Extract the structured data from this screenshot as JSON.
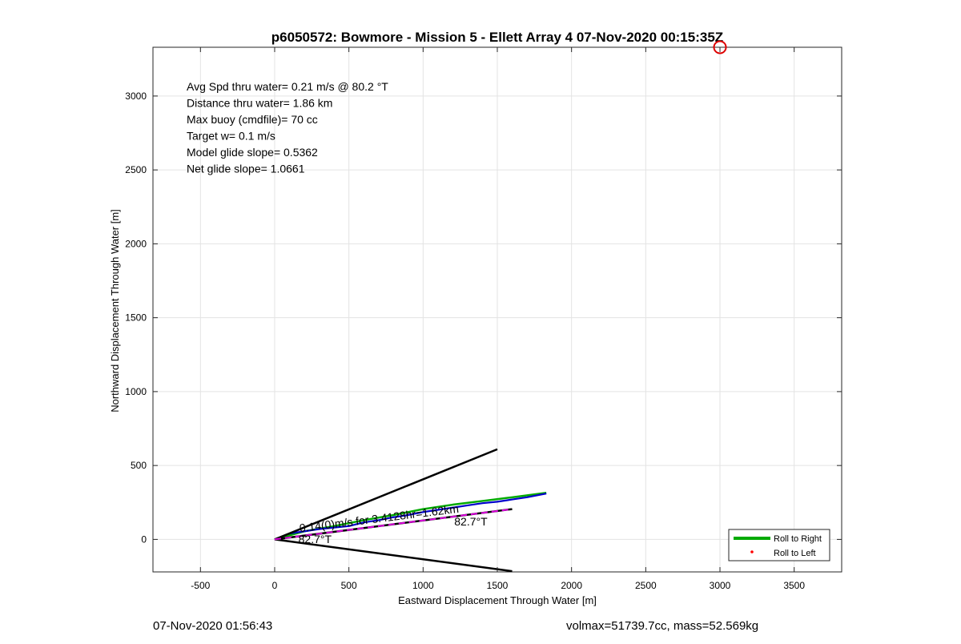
{
  "chart_data": {
    "type": "line",
    "title": "p6050572: Bowmore - Mission 5 - Ellett Array 4 07-Nov-2020 00:15:35Z",
    "xlabel": "Eastward Displacement Through Water [m]",
    "ylabel": "Northward Displacement Through Water [m]",
    "xlim": [
      -820,
      3820
    ],
    "ylim": [
      -220,
      3330
    ],
    "xticks": [
      -500,
      0,
      500,
      1000,
      1500,
      2000,
      2500,
      3000,
      3500
    ],
    "yticks": [
      0,
      500,
      1000,
      1500,
      2000,
      2500,
      3000
    ],
    "grid": true,
    "stats": [
      "Avg Spd thru water=  0.21 m/s @  80.2 °T",
      "Distance thru water=  1.86 km",
      "Max buoy (cmdfile)= 70 cc",
      "Target w= 0.1 m/s",
      "Model glide slope= 0.5362",
      "Net glide slope= 1.0661"
    ],
    "annotations": [
      {
        "text": "0.14(0)m/s for 3.4128hr=1.62km",
        "x": 170,
        "y": 50,
        "angle_deg": 7
      },
      {
        "text": "82.7°T",
        "x": 1210,
        "y": 95
      },
      {
        "text": "82.7°T",
        "x": 160,
        "y": -25
      }
    ],
    "series": [
      {
        "name": "Roll to Right",
        "color": "#00aa00",
        "x": [
          0,
          200,
          400,
          600,
          800,
          1000,
          1200,
          1400,
          1600,
          1830
        ],
        "y": [
          0,
          55,
          90,
          130,
          165,
          205,
          235,
          260,
          285,
          315
        ]
      },
      {
        "name": "Roll to Left",
        "color": "#ff0000",
        "x": [],
        "y": []
      },
      {
        "color": "#0000cc",
        "x": [
          0,
          100,
          200,
          300,
          400,
          500,
          600,
          700,
          800,
          900,
          1000,
          1100,
          1200,
          1300,
          1400,
          1500,
          1600,
          1700,
          1830
        ],
        "y": [
          0,
          40,
          55,
          70,
          80,
          90,
          115,
          130,
          150,
          165,
          185,
          200,
          215,
          230,
          245,
          255,
          270,
          285,
          310
        ]
      },
      {
        "color": "#000000",
        "x": [
          0,
          1500
        ],
        "y": [
          0,
          610
        ]
      },
      {
        "color": "#000000",
        "x": [
          0,
          1600
        ],
        "y": [
          0,
          -215
        ]
      },
      {
        "color": "#000000",
        "x": [
          0,
          1600
        ],
        "y": [
          0,
          205
        ]
      },
      {
        "color": "#dd00dd",
        "x": [
          0,
          1600
        ],
        "y": [
          0,
          205
        ]
      }
    ],
    "target_marker": {
      "x": 3000,
      "y": 3330,
      "color": "#dd0000"
    },
    "legend": {
      "placement": "bottom-right"
    }
  },
  "footer": {
    "timestamp": "07-Nov-2020 01:56:43",
    "summary": "volmax=51739.7cc, mass=52.569kg"
  }
}
